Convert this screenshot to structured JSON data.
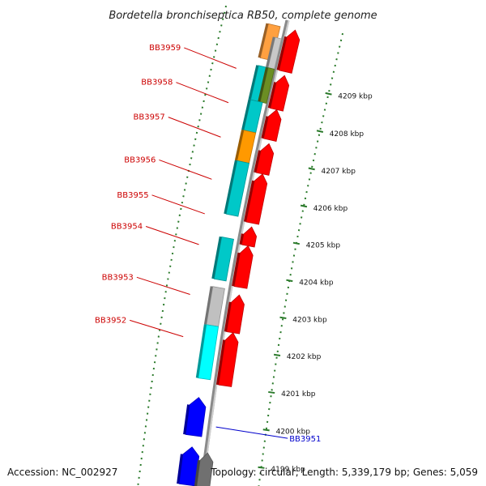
{
  "title": "Bordetella bronchiseptica RB50, complete genome",
  "footer": {
    "accession": "Accession: NC_002927",
    "summary": "Topology: circular; Length: 5,339,179 bp; Genes: 5,059"
  },
  "colors": {
    "forward_strand": "#ff0000",
    "reverse_strand": "#00bfbf",
    "axis": "#9a9a9a",
    "tick": "#2a7a2a",
    "label_red": "#cc0000",
    "label_blue": "#0000cc"
  },
  "ticks": [
    {
      "kbp": 4209,
      "label": "4209 kbp"
    },
    {
      "kbp": 4208,
      "label": "4208 kbp"
    },
    {
      "kbp": 4207,
      "label": "4207 kbp"
    },
    {
      "kbp": 4206,
      "label": "4206 kbp"
    },
    {
      "kbp": 4205,
      "label": "4205 kbp"
    },
    {
      "kbp": 4204,
      "label": "4204 kbp"
    },
    {
      "kbp": 4203,
      "label": "4203 kbp"
    },
    {
      "kbp": 4202,
      "label": "4202 kbp"
    },
    {
      "kbp": 4201,
      "label": "4201 kbp"
    },
    {
      "kbp": 4200,
      "label": "4200 kbp"
    },
    {
      "kbp": 4199,
      "label": "4199 kbp"
    }
  ],
  "gene_labels": [
    {
      "name": "BB3959",
      "kbp": 4209.1,
      "color": "#cc0000",
      "side": "left"
    },
    {
      "name": "BB3958",
      "kbp": 4208.2,
      "color": "#cc0000",
      "side": "left"
    },
    {
      "name": "BB3957",
      "kbp": 4207.3,
      "color": "#cc0000",
      "side": "left"
    },
    {
      "name": "BB3956",
      "kbp": 4206.2,
      "color": "#cc0000",
      "side": "left"
    },
    {
      "name": "BB3955",
      "kbp": 4205.3,
      "color": "#cc0000",
      "side": "left"
    },
    {
      "name": "BB3954",
      "kbp": 4204.5,
      "color": "#cc0000",
      "side": "left"
    },
    {
      "name": "BB3953",
      "kbp": 4203.2,
      "color": "#cc0000",
      "side": "left"
    },
    {
      "name": "BB3952",
      "kbp": 4202.1,
      "color": "#cc0000",
      "side": "left"
    },
    {
      "name": "BB3951",
      "kbp": 4199.9,
      "color": "#0000cc",
      "side": "right"
    }
  ],
  "features": [
    {
      "track": "rev",
      "start": 4209.5,
      "end": 4210.4,
      "color": "#ffa040"
    },
    {
      "track": "rev2",
      "start": 4209.3,
      "end": 4210.1,
      "color": "#c8c8c8"
    },
    {
      "track": "fwd",
      "start": 4209.3,
      "end": 4210.4,
      "color": "#ff0000"
    },
    {
      "track": "rev",
      "start": 4208.4,
      "end": 4209.3,
      "color": "#00c8c8"
    },
    {
      "track": "rev2",
      "start": 4208.4,
      "end": 4209.3,
      "color": "#6b8e23"
    },
    {
      "track": "fwd",
      "start": 4208.3,
      "end": 4209.2,
      "color": "#ff0000"
    },
    {
      "track": "rev",
      "start": 4207.6,
      "end": 4208.4,
      "color": "#00c8c8"
    },
    {
      "track": "fwd",
      "start": 4207.5,
      "end": 4208.3,
      "color": "#ff0000"
    },
    {
      "track": "rev",
      "start": 4206.8,
      "end": 4207.6,
      "color": "#ff9900"
    },
    {
      "track": "fwd",
      "start": 4206.6,
      "end": 4207.4,
      "color": "#ff0000"
    },
    {
      "track": "rev",
      "start": 4205.4,
      "end": 4206.8,
      "color": "#00c8c8"
    },
    {
      "track": "fwd",
      "start": 4205.3,
      "end": 4206.6,
      "color": "#ff0000"
    },
    {
      "track": "fwd",
      "start": 4204.7,
      "end": 4205.2,
      "color": "#ff0000"
    },
    {
      "track": "rev",
      "start": 4203.7,
      "end": 4204.8,
      "color": "#00c8c8"
    },
    {
      "track": "fwd",
      "start": 4203.6,
      "end": 4204.7,
      "color": "#ff0000"
    },
    {
      "track": "rev",
      "start": 4202.5,
      "end": 4203.5,
      "color": "#c0c0c0"
    },
    {
      "track": "fwd",
      "start": 4202.4,
      "end": 4203.4,
      "color": "#ff0000"
    },
    {
      "track": "rev",
      "start": 4201.1,
      "end": 4202.5,
      "color": "#00ffff"
    },
    {
      "track": "fwd",
      "start": 4201.0,
      "end": 4202.4,
      "color": "#ff0000"
    },
    {
      "track": "fwdout",
      "start": 4199.6,
      "end": 4200.6,
      "color": "#0000ff"
    },
    {
      "track": "fwdout",
      "start": 4198.3,
      "end": 4199.3,
      "color": "#0000ff"
    },
    {
      "track": "fwdout2",
      "start": 4198.3,
      "end": 4199.2,
      "color": "#707070"
    }
  ]
}
